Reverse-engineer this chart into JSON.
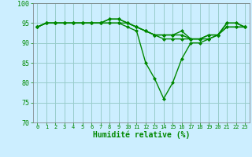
{
  "xlabel": "Humidité relative (%)",
  "background_color": "#cceeff",
  "grid_color": "#99cccc",
  "line_color": "#008800",
  "xlim": [
    -0.5,
    23.5
  ],
  "ylim": [
    70,
    100
  ],
  "yticks": [
    70,
    75,
    80,
    85,
    90,
    95,
    100
  ],
  "xticks": [
    0,
    1,
    2,
    3,
    4,
    5,
    6,
    7,
    8,
    9,
    10,
    11,
    12,
    13,
    14,
    15,
    16,
    17,
    18,
    19,
    20,
    21,
    22,
    23
  ],
  "lines": [
    [
      94,
      95,
      95,
      95,
      95,
      95,
      95,
      95,
      95,
      95,
      94,
      93,
      85,
      81,
      76,
      80,
      86,
      90,
      90,
      91,
      92,
      94,
      94,
      94
    ],
    [
      94,
      95,
      95,
      95,
      95,
      95,
      95,
      95,
      96,
      96,
      95,
      94,
      93,
      92,
      91,
      91,
      91,
      91,
      91,
      91,
      92,
      94,
      94,
      94
    ],
    [
      94,
      95,
      95,
      95,
      95,
      95,
      95,
      95,
      96,
      96,
      95,
      94,
      93,
      92,
      92,
      92,
      92,
      91,
      91,
      92,
      92,
      95,
      95,
      94
    ],
    [
      94,
      95,
      95,
      95,
      95,
      95,
      95,
      95,
      95,
      95,
      95,
      94,
      93,
      92,
      92,
      92,
      93,
      91,
      91,
      92,
      92,
      95,
      95,
      94
    ]
  ],
  "xlabel_fontsize": 7,
  "tick_fontsize": 5,
  "ytick_fontsize": 6,
  "linewidth": 1.0,
  "markersize": 2.0
}
